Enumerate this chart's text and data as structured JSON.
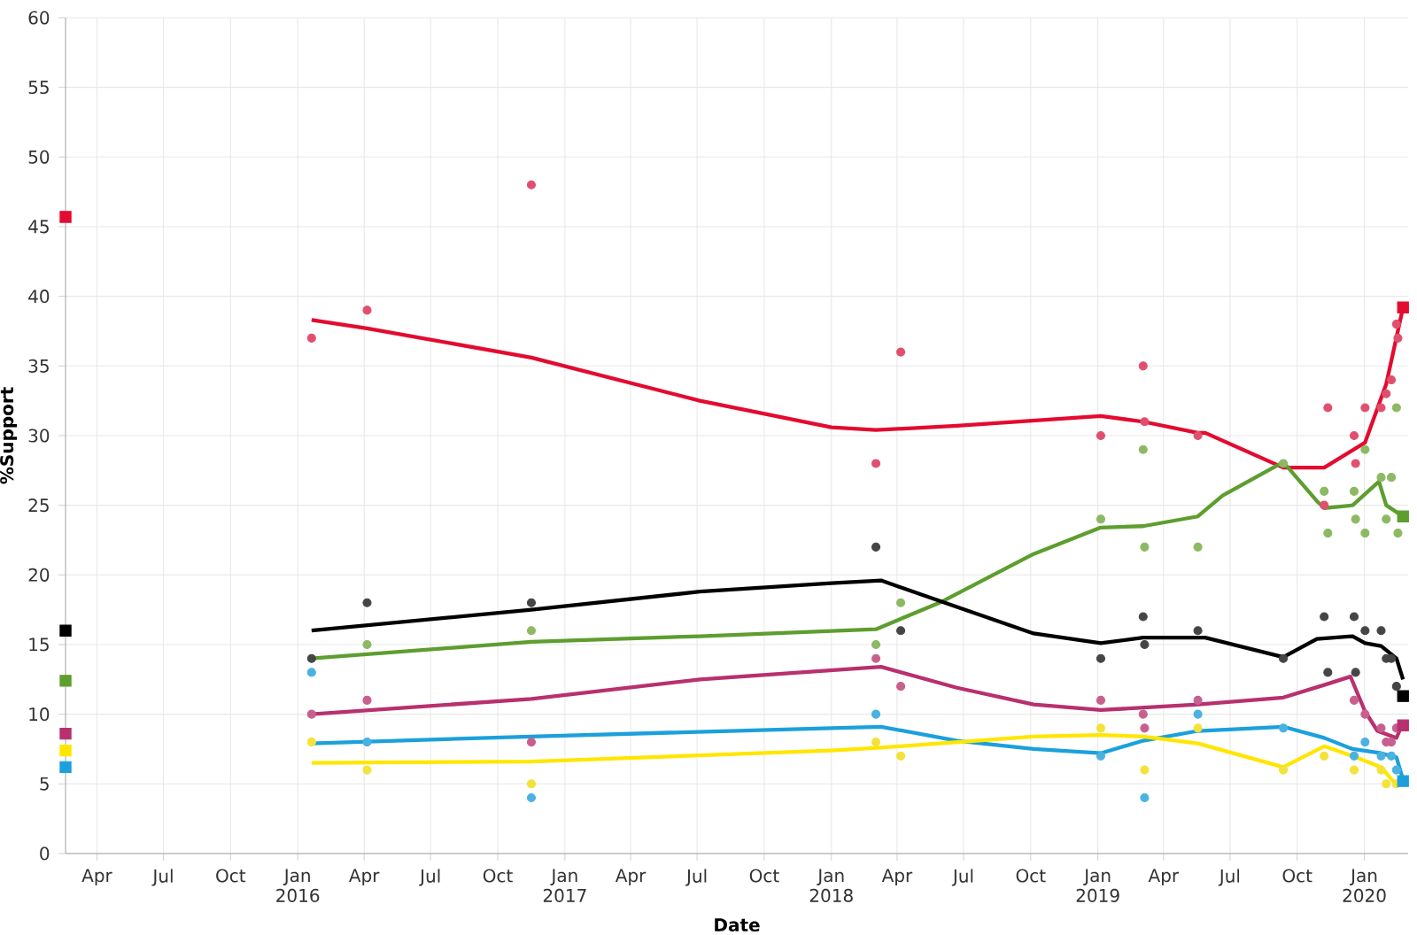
{
  "chart_data": {
    "type": "line",
    "xlabel": "Date",
    "ylabel": "%Support",
    "grid": true,
    "line_style": "solid",
    "xlim": [
      "2015-02-17",
      "2020-03-01"
    ],
    "ylim": [
      0,
      60
    ],
    "yticks": [
      0,
      5,
      10,
      15,
      20,
      25,
      30,
      35,
      40,
      45,
      50,
      55,
      60
    ],
    "xticks": [
      {
        "value": "2015-04-01",
        "label": "Apr"
      },
      {
        "value": "2015-07-01",
        "label": "Jul"
      },
      {
        "value": "2015-10-01",
        "label": "Oct"
      },
      {
        "value": "2016-01-01",
        "label": "Jan 2016"
      },
      {
        "value": "2016-04-01",
        "label": "Apr"
      },
      {
        "value": "2016-07-01",
        "label": "Jul"
      },
      {
        "value": "2016-10-01",
        "label": "Oct"
      },
      {
        "value": "2017-01-01",
        "label": "Jan 2017"
      },
      {
        "value": "2017-04-01",
        "label": "Apr"
      },
      {
        "value": "2017-07-01",
        "label": "Jul"
      },
      {
        "value": "2017-10-01",
        "label": "Oct"
      },
      {
        "value": "2018-01-01",
        "label": "Jan 2018"
      },
      {
        "value": "2018-04-01",
        "label": "Apr"
      },
      {
        "value": "2018-07-01",
        "label": "Jul"
      },
      {
        "value": "2018-10-01",
        "label": "Oct"
      },
      {
        "value": "2019-01-01",
        "label": "Jan 2019"
      },
      {
        "value": "2019-04-01",
        "label": "Apr"
      },
      {
        "value": "2019-07-01",
        "label": "Jul"
      },
      {
        "value": "2019-10-01",
        "label": "Oct"
      },
      {
        "value": "2020-01-01",
        "label": "Jan 2020"
      }
    ],
    "series": [
      {
        "type": "scatter",
        "marker": "circle",
        "color": "#e0506e",
        "x": [
          "2016-01-20",
          "2016-04-05",
          "2016-11-16",
          "2018-03-03",
          "2018-04-06",
          "2019-01-05",
          "2019-03-04",
          "2019-03-06",
          "2019-05-18",
          "2019-11-07",
          "2019-11-12",
          "2019-12-18",
          "2019-12-20",
          "2020-01-02",
          "2020-01-24",
          "2020-01-31",
          "2020-02-07",
          "2020-02-14",
          "2020-02-16"
        ],
        "values": [
          37,
          39,
          48,
          28,
          36,
          30,
          35,
          31,
          30,
          25,
          32,
          30,
          28,
          32,
          32,
          33,
          34,
          38,
          37
        ]
      },
      {
        "type": "scatter",
        "marker": "circle",
        "color": "#8db864",
        "x": [
          "2016-04-05",
          "2016-11-16",
          "2018-03-03",
          "2018-04-06",
          "2019-01-05",
          "2019-03-04",
          "2019-03-06",
          "2019-05-18",
          "2019-09-12",
          "2019-11-07",
          "2019-11-12",
          "2019-12-18",
          "2019-12-20",
          "2020-01-02",
          "2020-01-02",
          "2020-01-24",
          "2020-01-31",
          "2020-02-07",
          "2020-02-14",
          "2020-02-16"
        ],
        "values": [
          15,
          16,
          15,
          18,
          24,
          29,
          22,
          22,
          28,
          26,
          23,
          26,
          24,
          29,
          23,
          27,
          24,
          27,
          32,
          23
        ]
      },
      {
        "type": "scatter",
        "marker": "circle",
        "color": "#454545",
        "x": [
          "2016-01-20",
          "2016-04-05",
          "2016-11-16",
          "2018-03-03",
          "2018-04-06",
          "2019-01-05",
          "2019-03-04",
          "2019-03-06",
          "2019-05-18",
          "2019-09-12",
          "2019-11-07",
          "2019-11-12",
          "2019-12-18",
          "2019-12-20",
          "2020-01-02",
          "2020-01-24",
          "2020-01-31",
          "2020-02-07",
          "2020-02-14"
        ],
        "values": [
          14,
          18,
          18,
          22,
          16,
          14,
          17,
          15,
          16,
          14,
          17,
          13,
          17,
          13,
          16,
          16,
          14,
          14,
          12
        ]
      },
      {
        "type": "scatter",
        "marker": "circle",
        "color": "#c8608e",
        "x": [
          "2016-01-20",
          "2016-04-05",
          "2016-11-16",
          "2018-03-03",
          "2018-04-06",
          "2019-01-05",
          "2019-03-04",
          "2019-03-06",
          "2019-05-18",
          "2019-12-18",
          "2020-01-02",
          "2020-01-24",
          "2020-01-31",
          "2020-02-07",
          "2020-02-14"
        ],
        "values": [
          10,
          11,
          8,
          14,
          12,
          11,
          10,
          9,
          11,
          11,
          10,
          9,
          8,
          8,
          9
        ]
      },
      {
        "type": "scatter",
        "marker": "circle",
        "color": "#4ab2e0",
        "x": [
          "2016-01-20",
          "2016-04-05",
          "2016-11-16",
          "2018-03-03",
          "2019-01-05",
          "2019-03-06",
          "2019-05-18",
          "2019-09-12",
          "2019-12-18",
          "2020-01-02",
          "2020-01-24",
          "2020-02-07",
          "2020-02-14"
        ],
        "values": [
          13,
          8,
          4,
          10,
          7,
          4,
          10,
          9,
          7,
          8,
          7,
          7,
          6
        ]
      },
      {
        "type": "scatter",
        "marker": "circle",
        "color": "#f2e23a",
        "x": [
          "2016-01-20",
          "2016-04-05",
          "2016-11-16",
          "2018-03-03",
          "2018-04-06",
          "2019-01-05",
          "2019-03-06",
          "2019-05-18",
          "2019-09-12",
          "2019-11-07",
          "2019-12-18",
          "2020-01-24",
          "2020-01-31",
          "2020-02-14"
        ],
        "values": [
          8,
          6,
          5,
          8,
          7,
          9,
          6,
          9,
          6,
          7,
          6,
          6,
          5,
          5
        ]
      },
      {
        "type": "line",
        "color": "#e30b2f",
        "x": [
          "2016-01-20",
          "2016-04-05",
          "2016-11-16",
          "2017-07-05",
          "2018-01-01",
          "2018-03-03",
          "2018-06-22",
          "2019-01-05",
          "2019-03-04",
          "2019-05-18",
          "2019-05-28",
          "2019-09-12",
          "2019-11-07",
          "2020-01-02",
          "2020-01-31",
          "2020-02-23"
        ],
        "values": [
          38.3,
          37.7,
          35.6,
          32.5,
          30.6,
          30.4,
          30.7,
          31.4,
          31.0,
          30.2,
          30.2,
          27.7,
          27.7,
          29.5,
          33.7,
          39.2
        ]
      },
      {
        "type": "line",
        "color": "#5d9e2f",
        "x": [
          "2016-01-20",
          "2016-11-16",
          "2017-07-05",
          "2018-03-03",
          "2018-05-29",
          "2018-10-05",
          "2019-01-05",
          "2019-03-04",
          "2019-05-18",
          "2019-06-21",
          "2019-09-12",
          "2019-10-28",
          "2019-11-07",
          "2019-12-16",
          "2020-01-21",
          "2020-01-31",
          "2020-02-23"
        ],
        "values": [
          14.0,
          15.2,
          15.6,
          16.1,
          18.0,
          21.5,
          23.4,
          23.5,
          24.2,
          25.7,
          28.1,
          25.3,
          24.8,
          25.0,
          26.7,
          25.0,
          24.2
        ]
      },
      {
        "type": "line",
        "color": "#000000",
        "x": [
          "2016-01-20",
          "2016-11-16",
          "2017-07-05",
          "2018-01-01",
          "2018-03-10",
          "2018-06-22",
          "2018-10-05",
          "2019-01-05",
          "2019-03-04",
          "2019-05-28",
          "2019-09-12",
          "2019-10-28",
          "2019-12-16",
          "2020-01-02",
          "2020-01-24",
          "2020-02-14",
          "2020-02-23"
        ],
        "values": [
          16.0,
          17.5,
          18.8,
          19.4,
          19.6,
          17.7,
          15.8,
          15.1,
          15.5,
          15.5,
          14.1,
          15.4,
          15.6,
          15.1,
          14.9,
          14.0,
          12.5
        ]
      },
      {
        "type": "line",
        "color": "#b8306f",
        "x": [
          "2016-01-20",
          "2016-11-16",
          "2017-07-05",
          "2018-03-10",
          "2018-06-22",
          "2018-10-05",
          "2019-01-05",
          "2019-05-18",
          "2019-09-12",
          "2019-11-07",
          "2019-12-13",
          "2020-01-02",
          "2020-01-19",
          "2020-02-14",
          "2020-02-23"
        ],
        "values": [
          10.0,
          11.1,
          12.5,
          13.4,
          11.9,
          10.7,
          10.3,
          10.7,
          11.2,
          12.1,
          12.7,
          10.2,
          8.8,
          8.3,
          9.4
        ]
      },
      {
        "type": "line",
        "color": "#1ba0dc",
        "x": [
          "2016-01-20",
          "2016-11-16",
          "2018-01-01",
          "2018-03-10",
          "2018-06-22",
          "2018-10-05",
          "2019-01-05",
          "2019-03-04",
          "2019-05-18",
          "2019-09-12",
          "2019-11-07",
          "2019-12-16",
          "2020-01-24",
          "2020-02-14",
          "2020-02-23"
        ],
        "values": [
          7.9,
          8.4,
          9.0,
          9.1,
          8.1,
          7.5,
          7.2,
          8.1,
          8.8,
          9.1,
          8.3,
          7.5,
          7.2,
          6.9,
          5.3
        ]
      },
      {
        "type": "line",
        "color": "#ffe600",
        "x": [
          "2016-01-20",
          "2016-11-16",
          "2018-01-01",
          "2018-03-10",
          "2018-10-05",
          "2019-01-05",
          "2019-03-04",
          "2019-05-18",
          "2019-09-12",
          "2019-11-07",
          "2019-12-16",
          "2020-01-24",
          "2020-02-14",
          "2020-02-23"
        ],
        "values": [
          6.5,
          6.6,
          7.4,
          7.6,
          8.4,
          8.5,
          8.4,
          7.9,
          6.2,
          7.7,
          7.0,
          6.2,
          4.9,
          5.1
        ]
      },
      {
        "type": "scatter",
        "marker": "square",
        "color": "#e30b2f",
        "x": [
          "2015-02-17",
          "2020-02-23"
        ],
        "values": [
          45.7,
          39.2
        ]
      },
      {
        "type": "scatter",
        "marker": "square",
        "color": "#5d9e2f",
        "x": [
          "2015-02-17",
          "2020-02-23"
        ],
        "values": [
          12.4,
          24.2
        ]
      },
      {
        "type": "scatter",
        "marker": "square",
        "color": "#000000",
        "x": [
          "2015-02-17",
          "2020-02-23"
        ],
        "values": [
          16.0,
          11.3
        ]
      },
      {
        "type": "scatter",
        "marker": "square",
        "color": "#b8306f",
        "x": [
          "2015-02-17",
          "2020-02-23"
        ],
        "values": [
          8.6,
          9.2
        ]
      },
      {
        "type": "scatter",
        "marker": "square",
        "color": "#ffe600",
        "x": [
          "2015-02-17"
        ],
        "values": [
          7.4
        ]
      },
      {
        "type": "scatter",
        "marker": "square",
        "color": "#1ba0dc",
        "x": [
          "2015-02-17",
          "2020-02-23"
        ],
        "values": [
          6.2,
          5.2
        ]
      }
    ]
  }
}
